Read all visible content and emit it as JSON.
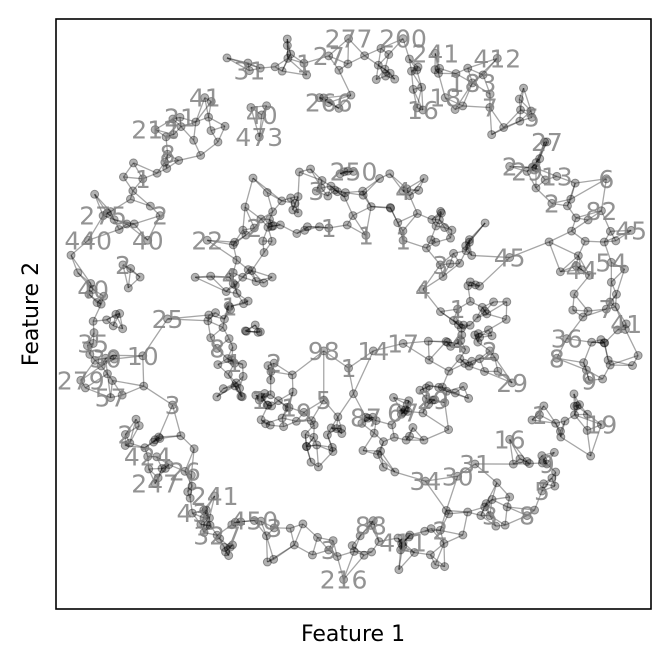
{
  "chart_data": {
    "type": "scatter",
    "subtype": "network graph (nodes with index labels and connecting edges)",
    "title": "",
    "xlabel": "Feature 1",
    "ylabel": "Feature 2",
    "xlim": [
      -1.2,
      1.2
    ],
    "ylim": [
      -1.2,
      1.2
    ],
    "ticks_visible": false,
    "grid": false,
    "structure": "two concentric noisy rings of points (outer ring radius about 1.0, inner ring radius about 0.5); edges connect neighbouring points",
    "node_color": "#000000",
    "node_alpha": 0.3,
    "edge_color": "#000000",
    "label_color": "#808080",
    "visible_node_labels": [
      {
        "label": "216",
        "x": -0.04,
        "y": -1.08
      },
      {
        "label": "88",
        "x": 0.07,
        "y": -0.86
      },
      {
        "label": "411",
        "x": 0.2,
        "y": -0.93
      },
      {
        "label": "3",
        "x": -0.1,
        "y": -0.96
      },
      {
        "label": "3",
        "x": -0.32,
        "y": -0.87
      },
      {
        "label": "450",
        "x": -0.4,
        "y": -0.84
      },
      {
        "label": "327",
        "x": -0.55,
        "y": -0.9
      },
      {
        "label": "43",
        "x": -0.65,
        "y": -0.81
      },
      {
        "label": "241",
        "x": -0.56,
        "y": -0.74
      },
      {
        "label": "247",
        "x": -0.8,
        "y": -0.69
      },
      {
        "label": "26",
        "x": -0.68,
        "y": -0.64
      },
      {
        "label": "424",
        "x": -0.83,
        "y": -0.58
      },
      {
        "label": "2",
        "x": -0.92,
        "y": -0.49
      },
      {
        "label": "57",
        "x": -0.98,
        "y": -0.34
      },
      {
        "label": "3",
        "x": -0.73,
        "y": -0.37
      },
      {
        "label": "279",
        "x": -1.1,
        "y": -0.27
      },
      {
        "label": "30",
        "x": -1.0,
        "y": -0.18
      },
      {
        "label": "10",
        "x": -0.85,
        "y": -0.17
      },
      {
        "label": "35",
        "x": -1.05,
        "y": -0.12
      },
      {
        "label": "25",
        "x": -0.75,
        "y": -0.02
      },
      {
        "label": "40",
        "x": -1.05,
        "y": 0.1
      },
      {
        "label": "2",
        "x": -0.93,
        "y": 0.2
      },
      {
        "label": "440",
        "x": -1.07,
        "y": 0.3
      },
      {
        "label": "275",
        "x": -1.01,
        "y": 0.4
      },
      {
        "label": "2",
        "x": -0.78,
        "y": 0.4
      },
      {
        "label": "22",
        "x": -0.59,
        "y": 0.3
      },
      {
        "label": "40",
        "x": -0.83,
        "y": 0.3
      },
      {
        "label": "1",
        "x": -0.85,
        "y": 0.55
      },
      {
        "label": "8",
        "x": -0.75,
        "y": 0.65
      },
      {
        "label": "212",
        "x": -0.8,
        "y": 0.75
      },
      {
        "label": "21",
        "x": -0.7,
        "y": 0.8
      },
      {
        "label": "41",
        "x": -0.6,
        "y": 0.88
      },
      {
        "label": "473",
        "x": -0.38,
        "y": 0.72
      },
      {
        "label": "40",
        "x": -0.37,
        "y": 0.81
      },
      {
        "label": "31",
        "x": -0.42,
        "y": 0.99
      },
      {
        "label": "1",
        "x": -0.2,
        "y": 1.02
      },
      {
        "label": "27",
        "x": -0.1,
        "y": 1.05
      },
      {
        "label": "277",
        "x": -0.02,
        "y": 1.12
      },
      {
        "label": "200",
        "x": 0.2,
        "y": 1.12
      },
      {
        "label": "266",
        "x": -0.1,
        "y": 0.86
      },
      {
        "label": "16",
        "x": 0.28,
        "y": 0.83
      },
      {
        "label": "18",
        "x": 0.37,
        "y": 0.88
      },
      {
        "label": "241",
        "x": 0.33,
        "y": 1.06
      },
      {
        "label": "412",
        "x": 0.58,
        "y": 1.04
      },
      {
        "label": "183",
        "x": 0.48,
        "y": 0.94
      },
      {
        "label": "7",
        "x": 0.55,
        "y": 0.84
      },
      {
        "label": "5",
        "x": 0.72,
        "y": 0.8
      },
      {
        "label": "27",
        "x": 0.78,
        "y": 0.7
      },
      {
        "label": "2",
        "x": 0.63,
        "y": 0.6
      },
      {
        "label": "13",
        "x": 0.82,
        "y": 0.56
      },
      {
        "label": "6",
        "x": 1.02,
        "y": 0.55
      },
      {
        "label": "2",
        "x": 0.8,
        "y": 0.45
      },
      {
        "label": "82",
        "x": 1.0,
        "y": 0.42
      },
      {
        "label": "45",
        "x": 1.12,
        "y": 0.34
      },
      {
        "label": "54",
        "x": 1.04,
        "y": 0.21
      },
      {
        "label": "44",
        "x": 0.92,
        "y": 0.18
      },
      {
        "label": "45",
        "x": 0.63,
        "y": 0.23
      },
      {
        "label": "7",
        "x": 1.02,
        "y": 0.02
      },
      {
        "label": "41",
        "x": 1.1,
        "y": -0.04
      },
      {
        "label": "36",
        "x": 0.86,
        "y": -0.1
      },
      {
        "label": "8",
        "x": 0.82,
        "y": -0.18
      },
      {
        "label": "29",
        "x": 0.64,
        "y": -0.28
      },
      {
        "label": "9",
        "x": 0.95,
        "y": -0.27
      },
      {
        "label": "19",
        "x": 1.0,
        "y": -0.45
      },
      {
        "label": "1",
        "x": 0.75,
        "y": -0.41
      },
      {
        "label": "16",
        "x": 0.63,
        "y": -0.51
      },
      {
        "label": "9",
        "x": 0.78,
        "y": -0.61
      },
      {
        "label": "5",
        "x": 0.76,
        "y": -0.72
      },
      {
        "label": "8",
        "x": 0.7,
        "y": -0.82
      },
      {
        "label": "3",
        "x": 0.55,
        "y": -0.82
      },
      {
        "label": "30",
        "x": 0.42,
        "y": -0.66
      },
      {
        "label": "31",
        "x": 0.49,
        "y": -0.61
      },
      {
        "label": "34",
        "x": 0.29,
        "y": -0.68
      },
      {
        "label": "2",
        "x": 0.35,
        "y": -0.88
      },
      {
        "label": "1",
        "x": -0.5,
        "y": 0.03
      },
      {
        "label": "8",
        "x": -0.55,
        "y": -0.14
      },
      {
        "label": "1",
        "x": -0.48,
        "y": -0.2
      },
      {
        "label": "2",
        "x": -0.32,
        "y": -0.2
      },
      {
        "label": "1",
        "x": -0.38,
        "y": -0.35
      },
      {
        "label": "1",
        "x": -0.26,
        "y": -0.38
      },
      {
        "label": "9",
        "x": -0.2,
        "y": -0.4
      },
      {
        "label": "98",
        "x": -0.12,
        "y": -0.15
      },
      {
        "label": "1",
        "x": -0.02,
        "y": -0.22
      },
      {
        "label": "5",
        "x": -0.12,
        "y": -0.35
      },
      {
        "label": "87",
        "x": 0.05,
        "y": -0.42
      },
      {
        "label": "67",
        "x": 0.2,
        "y": -0.4
      },
      {
        "label": "29",
        "x": 0.32,
        "y": -0.35
      },
      {
        "label": "14",
        "x": 0.08,
        "y": -0.15
      },
      {
        "label": "17",
        "x": 0.2,
        "y": -0.12
      },
      {
        "label": "4",
        "x": 0.42,
        "y": -0.12
      },
      {
        "label": "2",
        "x": 0.55,
        "y": -0.15
      },
      {
        "label": "1",
        "x": 0.42,
        "y": 0.02
      },
      {
        "label": "4",
        "x": 0.28,
        "y": 0.1
      },
      {
        "label": "3",
        "x": 0.35,
        "y": 0.2
      },
      {
        "label": "1",
        "x": 0.2,
        "y": 0.3
      },
      {
        "label": "4",
        "x": 0.2,
        "y": 0.5
      },
      {
        "label": "1",
        "x": 0.05,
        "y": 0.32
      },
      {
        "label": "3",
        "x": -0.15,
        "y": 0.5
      },
      {
        "label": "1",
        "x": -0.1,
        "y": 0.35
      },
      {
        "label": "2",
        "x": -0.4,
        "y": 0.35
      },
      {
        "label": "4",
        "x": -0.5,
        "y": 0.15
      },
      {
        "label": "250",
        "x": 0.0,
        "y": 0.58
      },
      {
        "label": "29",
        "x": 0.7,
        "y": 0.58
      }
    ]
  }
}
